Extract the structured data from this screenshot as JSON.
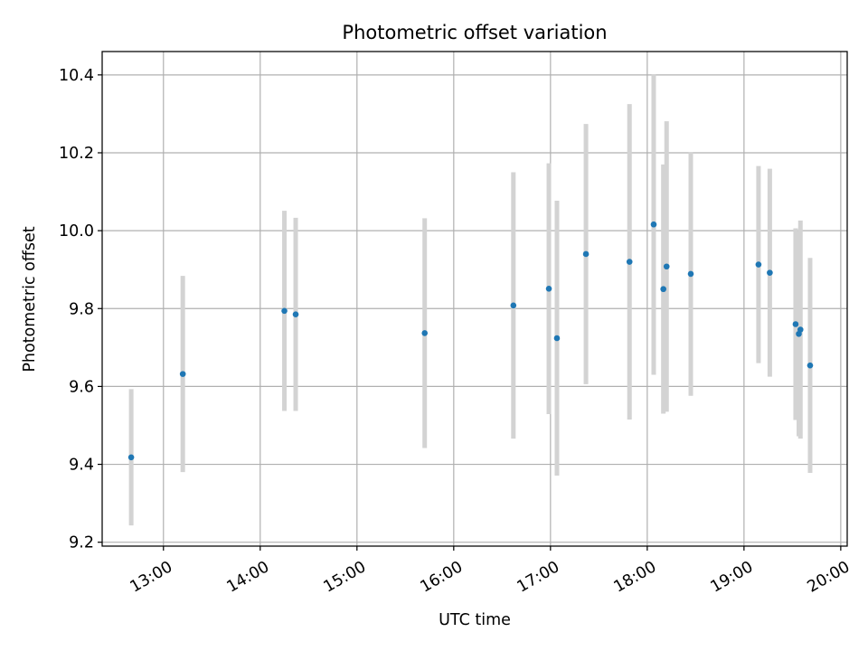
{
  "chart_data": {
    "type": "scatter",
    "title": "Photometric offset variation",
    "xlabel": "UTC time",
    "ylabel": "Photometric offset",
    "x_tick_labels": [
      "13:00",
      "14:00",
      "15:00",
      "16:00",
      "17:00",
      "18:00",
      "19:00",
      "20:00"
    ],
    "y_tick_labels": [
      "9.2",
      "9.4",
      "9.6",
      "9.8",
      "10.0",
      "10.2",
      "10.4"
    ],
    "y_ticks": [
      9.2,
      9.4,
      9.6,
      9.8,
      10.0,
      10.2,
      10.4
    ],
    "xlim": [
      "12:22",
      "20:04"
    ],
    "ylim": [
      9.19,
      10.46
    ],
    "grid": true,
    "colors": {
      "points": "#1f77b4",
      "error_bars": "#d3d3d3",
      "grid": "#b0b0b0",
      "axes": "#000000"
    },
    "points": [
      {
        "time": "12:40",
        "y": 9.418,
        "err": 0.175
      },
      {
        "time": "13:12",
        "y": 9.632,
        "err": 0.252
      },
      {
        "time": "14:15",
        "y": 9.794,
        "err": 0.257
      },
      {
        "time": "14:22",
        "y": 9.785,
        "err": 0.248
      },
      {
        "time": "15:42",
        "y": 9.737,
        "err": 0.295
      },
      {
        "time": "16:37",
        "y": 9.808,
        "err": 0.342
      },
      {
        "time": "16:59",
        "y": 9.851,
        "err": 0.322
      },
      {
        "time": "17:04",
        "y": 9.724,
        "err": 0.353
      },
      {
        "time": "17:22",
        "y": 9.94,
        "err": 0.334
      },
      {
        "time": "17:49",
        "y": 9.92,
        "err": 0.405
      },
      {
        "time": "18:04",
        "y": 10.016,
        "err": 0.386
      },
      {
        "time": "18:10",
        "y": 9.85,
        "err": 0.32
      },
      {
        "time": "18:12",
        "y": 9.908,
        "err": 0.373
      },
      {
        "time": "18:27",
        "y": 9.889,
        "err": 0.313
      },
      {
        "time": "19:09",
        "y": 9.913,
        "err": 0.253
      },
      {
        "time": "19:16",
        "y": 9.892,
        "err": 0.267
      },
      {
        "time": "19:32",
        "y": 9.76,
        "err": 0.246
      },
      {
        "time": "19:34",
        "y": 9.735,
        "err": 0.263
      },
      {
        "time": "19:35",
        "y": 9.746,
        "err": 0.28
      },
      {
        "time": "19:41",
        "y": 9.654,
        "err": 0.276
      }
    ]
  }
}
